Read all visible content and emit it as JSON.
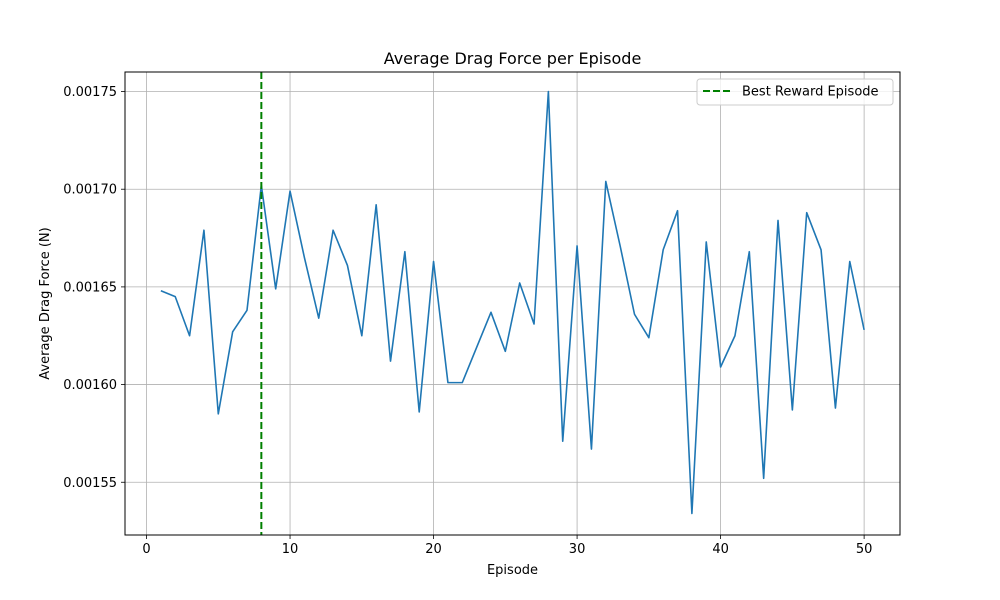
{
  "chart_data": {
    "type": "line",
    "title": "Average Drag Force per Episode",
    "xlabel": "Episode",
    "ylabel": "Average Drag Force (N)",
    "xlim": [
      -1.5,
      52.5
    ],
    "ylim": [
      0.001523,
      0.00176
    ],
    "x_ticks": [
      0,
      10,
      20,
      30,
      40,
      50
    ],
    "x_tick_labels": [
      "0",
      "10",
      "20",
      "30",
      "40",
      "50"
    ],
    "y_ticks": [
      0.00155,
      0.0016,
      0.00165,
      0.0017,
      0.00175
    ],
    "y_tick_labels": [
      "0.00155",
      "0.00160",
      "0.00165",
      "0.00170",
      "0.00175"
    ],
    "grid": true,
    "legend_position": "top-right",
    "series": [
      {
        "color": "#1f77b4",
        "x": [
          1,
          2,
          3,
          4,
          5,
          6,
          7,
          8,
          9,
          10,
          11,
          12,
          13,
          14,
          15,
          16,
          17,
          18,
          19,
          20,
          21,
          22,
          23,
          24,
          25,
          26,
          27,
          28,
          29,
          30,
          31,
          32,
          33,
          34,
          35,
          36,
          37,
          38,
          39,
          40,
          41,
          42,
          43,
          44,
          45,
          46,
          47,
          48,
          49,
          50
        ],
        "y": [
          0.001648,
          0.001645,
          0.001625,
          0.001679,
          0.001585,
          0.001627,
          0.001638,
          0.001702,
          0.001649,
          0.001699,
          0.001665,
          0.001634,
          0.001679,
          0.001661,
          0.001625,
          0.001692,
          0.001612,
          0.001668,
          0.001586,
          0.001663,
          0.001601,
          0.001601,
          0.001619,
          0.001637,
          0.001617,
          0.001652,
          0.001631,
          0.00175,
          0.001571,
          0.001671,
          0.001567,
          0.001704,
          0.001671,
          0.001636,
          0.001624,
          0.001669,
          0.001689,
          0.001534,
          0.001673,
          0.001609,
          0.001625,
          0.001668,
          0.001552,
          0.001684,
          0.001587,
          0.001688,
          0.001669,
          0.001588,
          0.001663,
          0.001628
        ]
      }
    ],
    "vline": {
      "x": 8,
      "label": "Best Reward Episode",
      "color": "#008000",
      "style": "dashed"
    }
  }
}
